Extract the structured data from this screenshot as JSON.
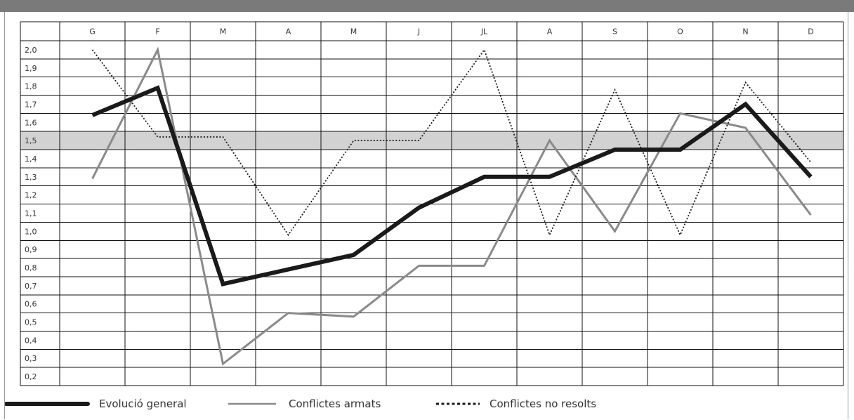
{
  "chart_data": {
    "type": "line",
    "categories": [
      "G",
      "F",
      "M",
      "A",
      "M",
      "J",
      "JL",
      "A",
      "S",
      "O",
      "N",
      "D"
    ],
    "y_ticks": [
      "2,0",
      "1,9",
      "1,8",
      "1,7",
      "1,6",
      "1,5",
      "1,4",
      "1,3",
      "1,2",
      "1,1",
      "1,0",
      "0,9",
      "0,8",
      "0,7",
      "0,6",
      "0,5",
      "0,4",
      "0,3",
      "0,2"
    ],
    "ylim": [
      0.2,
      2.0
    ],
    "highlight_band": [
      1.4,
      1.5
    ],
    "grid": true,
    "legend_position": "bottom",
    "series": [
      {
        "name": "Evolució general",
        "style": "thick",
        "color": "#1a1a1a",
        "values": [
          1.64,
          1.79,
          0.71,
          0.79,
          0.87,
          1.13,
          1.3,
          1.3,
          1.45,
          1.45,
          1.7,
          1.3
        ]
      },
      {
        "name": "Conflictes armats",
        "style": "solid",
        "color": "#8a8a8a",
        "values": [
          1.29,
          2.0,
          0.27,
          0.55,
          0.53,
          0.81,
          0.81,
          1.5,
          1.0,
          1.65,
          1.57,
          1.09
        ]
      },
      {
        "name": "Conflictes no resolts",
        "style": "dotted",
        "color": "#1a1a1a",
        "values": [
          2.0,
          1.52,
          1.52,
          0.98,
          1.5,
          1.5,
          2.0,
          0.98,
          1.78,
          0.98,
          1.82,
          1.38
        ]
      }
    ]
  }
}
